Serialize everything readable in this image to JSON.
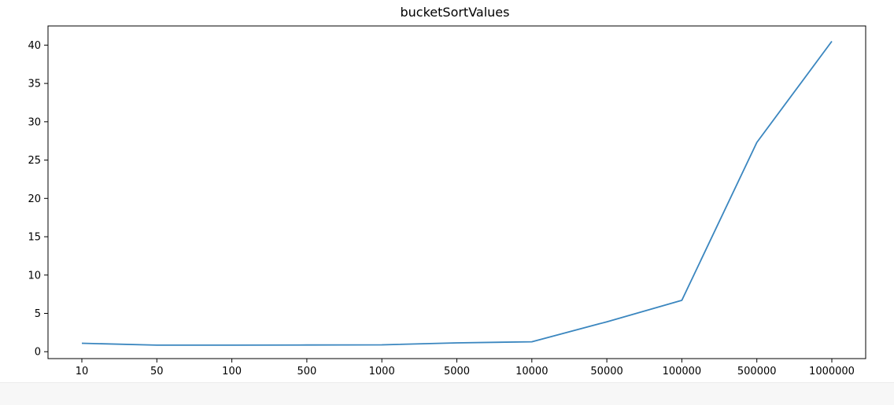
{
  "chart_data": {
    "type": "line",
    "title": "bucketSortValues",
    "xlabel": "",
    "ylabel": "",
    "categories": [
      "10",
      "50",
      "100",
      "500",
      "1000",
      "5000",
      "10000",
      "50000",
      "100000",
      "500000",
      "1000000"
    ],
    "series": [
      {
        "values": [
          1.1,
          0.85,
          0.85,
          0.87,
          0.9,
          1.15,
          1.3,
          3.9,
          6.7,
          27.3,
          40.5
        ],
        "color": "#3a86bf"
      }
    ],
    "ylim": [
      -0.9,
      42.5
    ],
    "yticks": [
      0,
      5,
      10,
      15,
      20,
      25,
      30,
      35,
      40
    ],
    "grid": false,
    "legend": false
  }
}
